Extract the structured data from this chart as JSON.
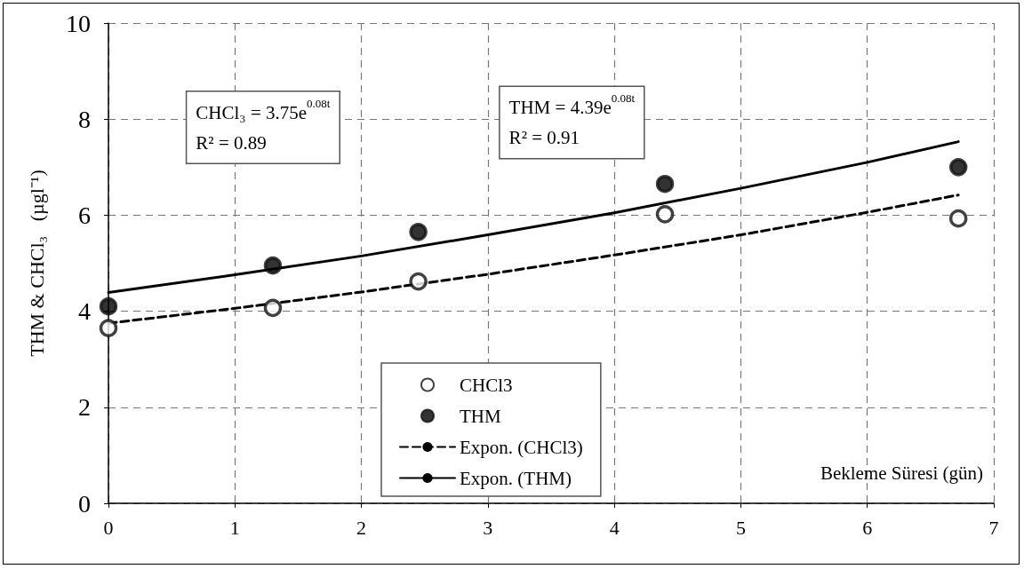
{
  "chart_data": {
    "type": "scatter",
    "xlabel": "Bekleme Süresi (gün)",
    "ylabel": "THM & CHCl₃   (µgl⁻¹)",
    "annotations": [
      "CHCl₃ = 3.75e$^{0.08t}$\nR² = 0.89",
      "THM = 4.39e$^{0.08t}$\nR² = 0.91"
    ],
    "xlim": [
      0,
      7
    ],
    "xticks": [
      0,
      1,
      2,
      3,
      4,
      5,
      6,
      7
    ],
    "ylim": [
      0,
      10
    ],
    "yticks": [
      0,
      2,
      4,
      6,
      8,
      10
    ],
    "grid": true,
    "legend": "bottom",
    "series": [
      {
        "name": "CHCl3",
        "marker": "circle",
        "color": "#ffffff",
        "x": [
          0,
          1.3,
          2.45,
          4.4,
          6.72
        ],
        "values": [
          3.65,
          4.07,
          4.62,
          6.02,
          5.93
        ]
      },
      {
        "name": "THM",
        "marker": "circle",
        "color": "#000000",
        "x": [
          0,
          1.3,
          2.45,
          4.4,
          6.72
        ],
        "values": [
          4.1,
          4.95,
          5.65,
          6.65,
          7.0
        ]
      },
      {
        "name": "Expon. (CHCl3)",
        "type": "line",
        "marker": "none",
        "line_style": "dashed",
        "color": "#000000",
        "x": [
          0,
          1,
          2,
          3,
          4,
          5,
          6,
          6.72
        ],
        "values": [
          3.75,
          4.06,
          4.4,
          4.77,
          5.17,
          5.59,
          6.06,
          6.42
        ]
      },
      {
        "name": "Expon. (THM)",
        "type": "line",
        "marker": "none",
        "line_style": "solid",
        "color": "#000000",
        "x": [
          0,
          1,
          2,
          3,
          4,
          5,
          6,
          6.72
        ],
        "values": [
          4.39,
          4.76,
          5.15,
          5.59,
          6.05,
          6.56,
          7.1,
          7.53
        ]
      }
    ]
  }
}
